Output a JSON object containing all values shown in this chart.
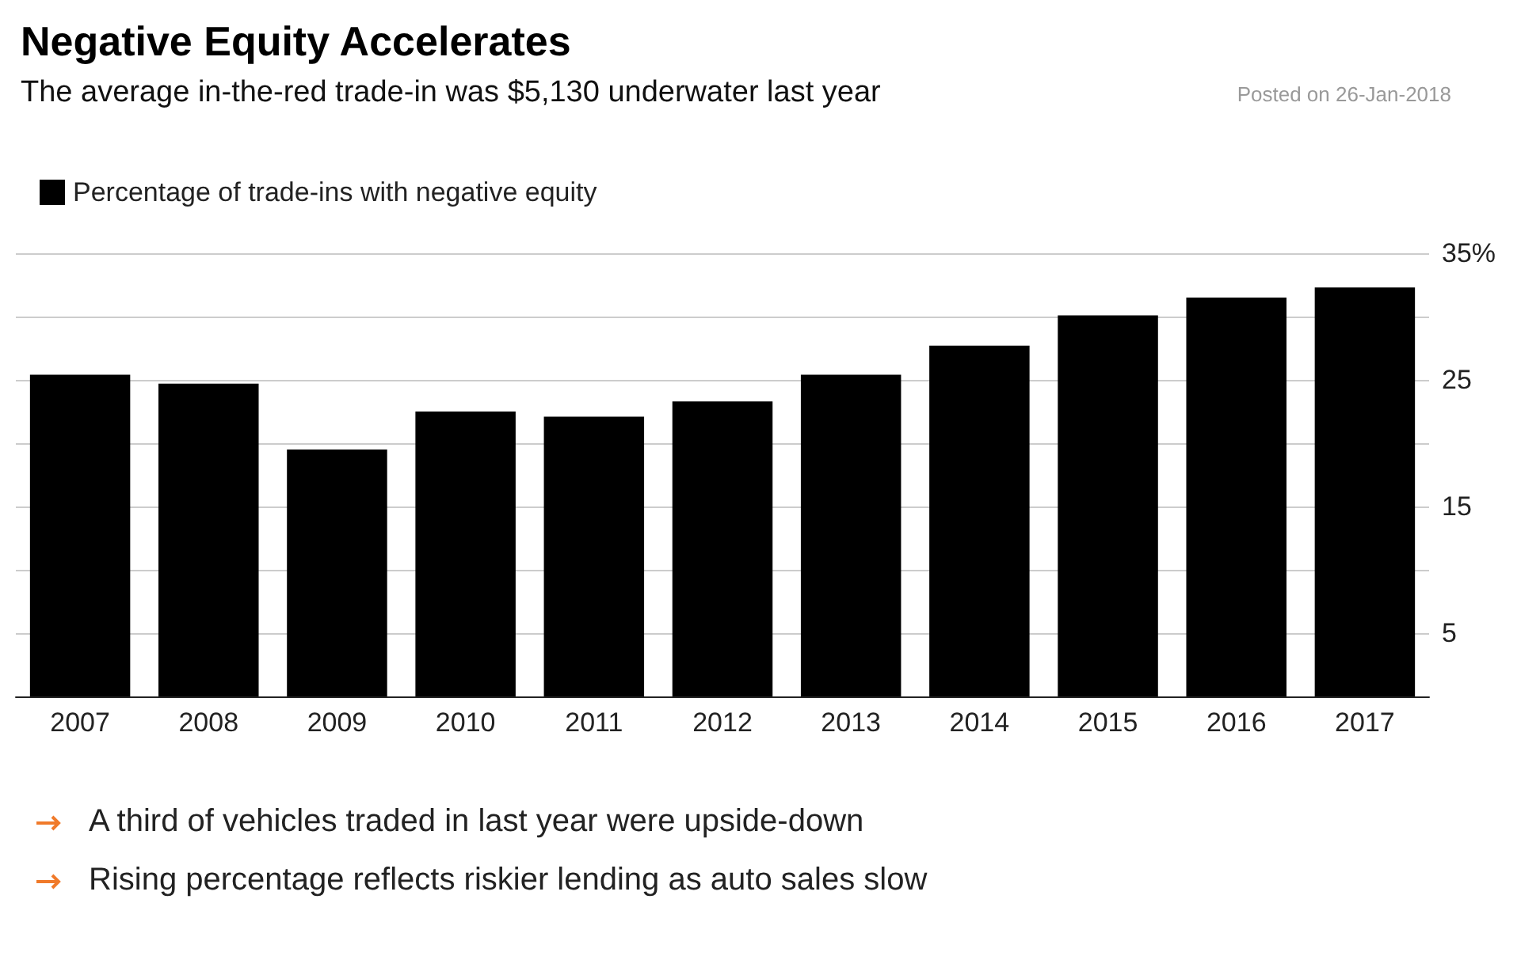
{
  "chart_data": {
    "type": "bar",
    "title": "Negative Equity Accelerates",
    "subtitle": "The average in-the-red trade-in was $5,130 underwater last year",
    "categories": [
      "2007",
      "2008",
      "2009",
      "2010",
      "2011",
      "2012",
      "2013",
      "2014",
      "2015",
      "2016",
      "2017"
    ],
    "series": [
      {
        "name": "Percentage of trade-ins with negative equity",
        "color": "#000000",
        "values": [
          25.4,
          24.7,
          19.5,
          22.5,
          22.1,
          23.3,
          25.4,
          27.7,
          30.1,
          31.5,
          32.3
        ]
      }
    ],
    "ylim": [
      0,
      35
    ],
    "yticks": [
      {
        "value": 0,
        "label": null
      },
      "5",
      {
        "value": 10,
        "label": null
      },
      "15",
      {
        "value": 20,
        "label": null
      },
      "25",
      {
        "value": 30,
        "label": null
      },
      {
        "value": 35,
        "label": "35%"
      }
    ],
    "grid": "y",
    "legend": "top left",
    "annotations": [
      "Posted on 26-Jan-2018",
      "A third of vehicles traded in last year were upside-down",
      "Rising percentage reflects riskier lending as auto sales slow"
    ]
  }
}
